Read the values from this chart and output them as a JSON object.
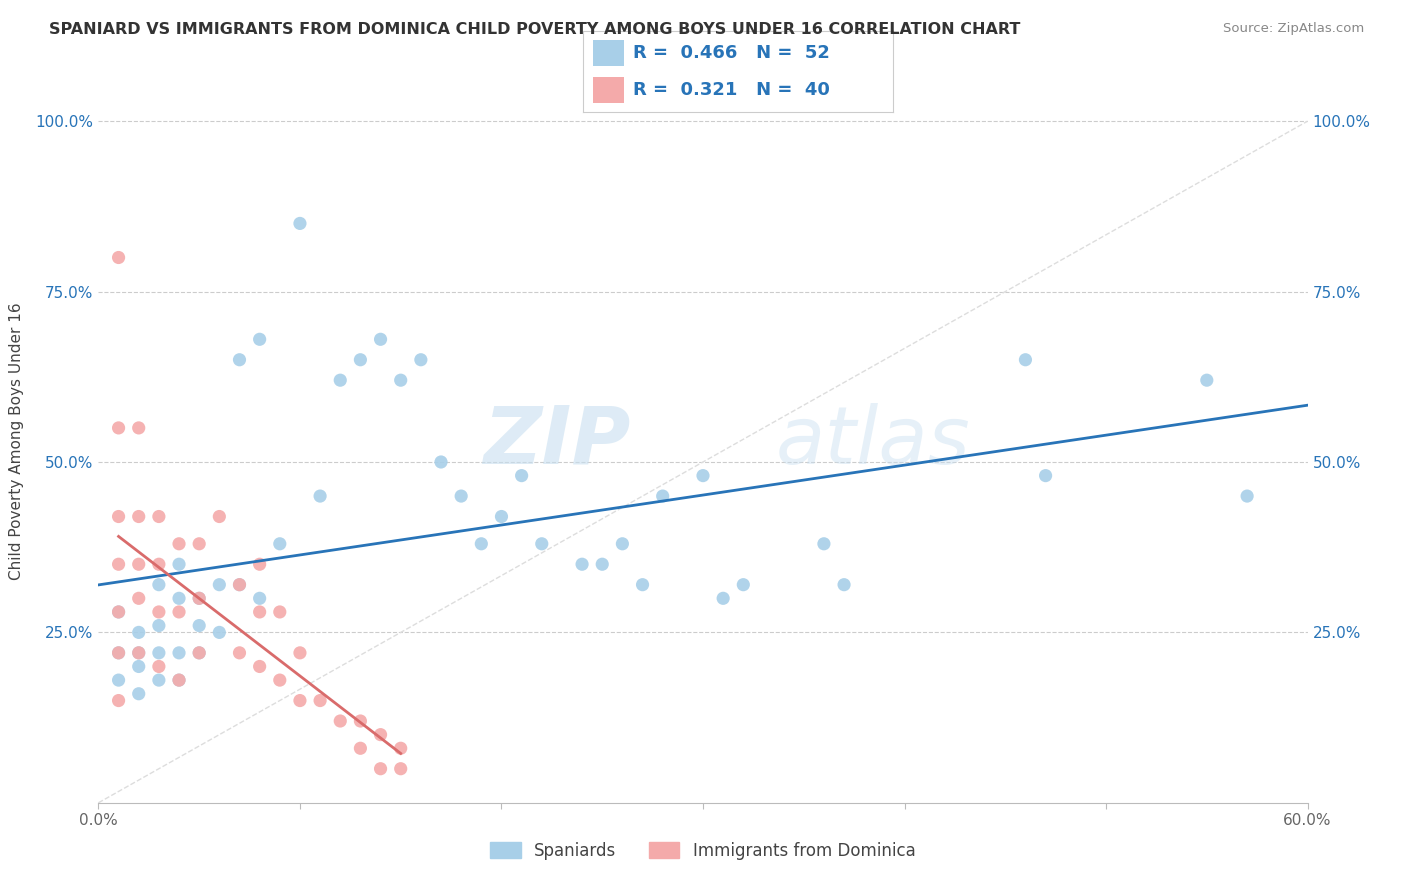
{
  "title": "SPANIARD VS IMMIGRANTS FROM DOMINICA CHILD POVERTY AMONG BOYS UNDER 16 CORRELATION CHART",
  "source": "Source: ZipAtlas.com",
  "ylabel": "Child Poverty Among Boys Under 16",
  "xlim": [
    0.0,
    0.6
  ],
  "ylim": [
    0.0,
    1.05
  ],
  "xtick_vals": [
    0.0,
    0.1,
    0.2,
    0.3,
    0.4,
    0.5,
    0.6
  ],
  "ytick_vals": [
    0.0,
    0.25,
    0.5,
    0.75,
    1.0
  ],
  "background_color": "#ffffff",
  "watermark_zip": "ZIP",
  "watermark_atlas": "atlas",
  "blue_color": "#a8cfe8",
  "pink_color": "#f4aaaa",
  "blue_line_color": "#2874b8",
  "pink_line_color": "#d96b6b",
  "diagonal_color": "#dddddd",
  "R_blue": 0.466,
  "N_blue": 52,
  "R_pink": 0.321,
  "N_pink": 40,
  "blue_x": [
    0.01,
    0.01,
    0.01,
    0.02,
    0.02,
    0.02,
    0.02,
    0.03,
    0.03,
    0.03,
    0.03,
    0.04,
    0.04,
    0.04,
    0.04,
    0.05,
    0.05,
    0.05,
    0.06,
    0.06,
    0.07,
    0.07,
    0.08,
    0.08,
    0.09,
    0.1,
    0.11,
    0.12,
    0.13,
    0.14,
    0.15,
    0.16,
    0.17,
    0.18,
    0.19,
    0.2,
    0.21,
    0.22,
    0.24,
    0.25,
    0.26,
    0.27,
    0.28,
    0.3,
    0.31,
    0.32,
    0.36,
    0.37,
    0.46,
    0.47,
    0.55,
    0.57
  ],
  "blue_y": [
    0.18,
    0.22,
    0.28,
    0.16,
    0.2,
    0.22,
    0.25,
    0.18,
    0.22,
    0.26,
    0.32,
    0.18,
    0.22,
    0.3,
    0.35,
    0.22,
    0.26,
    0.3,
    0.25,
    0.32,
    0.32,
    0.65,
    0.3,
    0.68,
    0.38,
    0.85,
    0.45,
    0.62,
    0.65,
    0.68,
    0.62,
    0.65,
    0.5,
    0.45,
    0.38,
    0.42,
    0.48,
    0.38,
    0.35,
    0.35,
    0.38,
    0.32,
    0.45,
    0.48,
    0.3,
    0.32,
    0.38,
    0.32,
    0.65,
    0.48,
    0.62,
    0.45
  ],
  "pink_x": [
    0.01,
    0.01,
    0.01,
    0.01,
    0.01,
    0.01,
    0.01,
    0.02,
    0.02,
    0.02,
    0.02,
    0.02,
    0.03,
    0.03,
    0.03,
    0.03,
    0.04,
    0.04,
    0.04,
    0.05,
    0.05,
    0.05,
    0.06,
    0.07,
    0.07,
    0.08,
    0.08,
    0.08,
    0.09,
    0.09,
    0.1,
    0.1,
    0.11,
    0.12,
    0.13,
    0.13,
    0.14,
    0.14,
    0.15,
    0.15
  ],
  "pink_y": [
    0.8,
    0.55,
    0.42,
    0.35,
    0.28,
    0.22,
    0.15,
    0.55,
    0.42,
    0.35,
    0.3,
    0.22,
    0.42,
    0.35,
    0.28,
    0.2,
    0.38,
    0.28,
    0.18,
    0.38,
    0.3,
    0.22,
    0.42,
    0.32,
    0.22,
    0.35,
    0.28,
    0.2,
    0.28,
    0.18,
    0.22,
    0.15,
    0.15,
    0.12,
    0.12,
    0.08,
    0.1,
    0.05,
    0.08,
    0.05
  ],
  "legend_label_blue": "Spaniards",
  "legend_label_pink": "Immigrants from Dominica"
}
